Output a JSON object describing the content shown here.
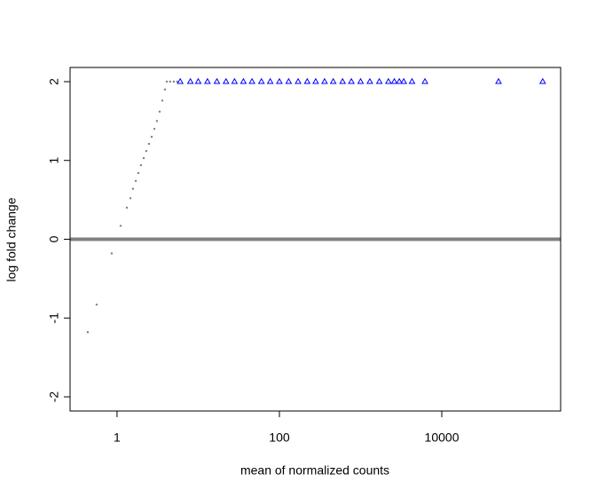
{
  "chart_data": {
    "type": "scatter",
    "x_label": "mean of normalized counts",
    "y_label": "log fold change",
    "log_x": true,
    "xlim": [
      0.264,
      291000
    ],
    "ylim": [
      -2.18,
      2.18
    ],
    "xticks": [
      1,
      100,
      10000
    ],
    "yticks": [
      -2,
      -1,
      0,
      1,
      2
    ],
    "hline": {
      "value": 0,
      "color": "#808080"
    },
    "series": [
      {
        "color": "#808080",
        "marker": "dot",
        "x": [
          0.436,
          0.561,
          0.86,
          1.106,
          1.32,
          1.46,
          1.57,
          1.7,
          1.83,
          1.97,
          2.13,
          2.29,
          2.47,
          2.67,
          2.88,
          3.1,
          3.35,
          3.61,
          3.89,
          4.1,
          4.5,
          5.0,
          5.5
        ],
        "values": [
          -1.18,
          -0.83,
          -0.18,
          0.17,
          0.4,
          0.52,
          0.64,
          0.74,
          0.84,
          0.94,
          1.03,
          1.12,
          1.21,
          1.3,
          1.4,
          1.5,
          1.62,
          1.76,
          1.9,
          2,
          2,
          2,
          2
        ]
      },
      {
        "color": "#0000ff",
        "marker": "triangle",
        "x": [
          6,
          8,
          10,
          13,
          17,
          22,
          28,
          36,
          46,
          60,
          77,
          100,
          130,
          170,
          220,
          280,
          360,
          460,
          600,
          770,
          1000,
          1300,
          1700,
          2200,
          2600,
          3000,
          3400,
          4300,
          6200,
          50000,
          175000
        ],
        "values": [
          2,
          2,
          2,
          2,
          2,
          2,
          2,
          2,
          2,
          2,
          2,
          2,
          2,
          2,
          2,
          2,
          2,
          2,
          2,
          2,
          2,
          2,
          2,
          2,
          2,
          2,
          2,
          2,
          2,
          2,
          2
        ]
      }
    ]
  }
}
